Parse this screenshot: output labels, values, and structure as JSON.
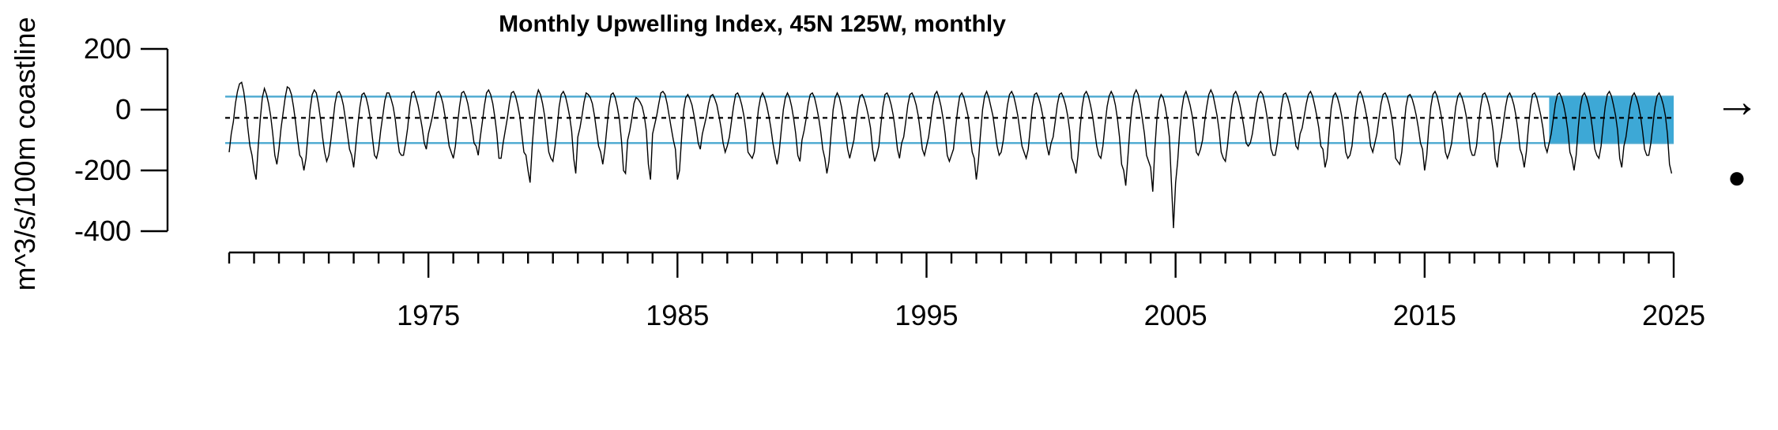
{
  "chart_data": {
    "type": "line",
    "title": "Monthly Upwelling Index, 45N 125W, monthly",
    "ylabel": "m^3/s/100m coastline",
    "xlabel": "",
    "xlim": [
      1967.0,
      2025.0
    ],
    "ylim": [
      -400,
      200
    ],
    "yticks": [
      200,
      0,
      -200,
      -400
    ],
    "ytick_labels": [
      "200",
      "0",
      "-200",
      "-400"
    ],
    "xticks_major": [
      1975,
      1985,
      1995,
      2005,
      2015,
      2025
    ],
    "xtick_labels": [
      "1975",
      "1985",
      "1995",
      "2005",
      "2015",
      "2025"
    ],
    "xticks_minor_start": 1967,
    "xticks_minor_end": 2025,
    "reference_lines": {
      "mean": -27,
      "upper": 43,
      "lower": -110
    },
    "highlight_period": {
      "start": 2020.0,
      "end": 2025.0
    },
    "colors": {
      "line": "#000000",
      "reference": "#4aa8d0",
      "highlight_fill": "#3da8d6",
      "mean_line": "#000000"
    },
    "recent_trend": "→",
    "recent_vs_mean": "●",
    "series": [
      {
        "start_year": 1967,
        "start_month": 1,
        "step_months": 1,
        "values": [
          -140,
          -80,
          -40,
          20,
          60,
          85,
          90,
          60,
          10,
          -60,
          -120,
          -150,
          -200,
          -230,
          -120,
          -30,
          40,
          70,
          50,
          20,
          -20,
          -80,
          -150,
          -180,
          -130,
          -60,
          -10,
          40,
          75,
          70,
          50,
          10,
          -40,
          -100,
          -150,
          -160,
          -200,
          -160,
          -80,
          0,
          50,
          65,
          55,
          20,
          -30,
          -90,
          -140,
          -170,
          -150,
          -100,
          -40,
          20,
          55,
          60,
          45,
          15,
          -30,
          -80,
          -130,
          -150,
          -190,
          -120,
          -50,
          10,
          50,
          55,
          40,
          10,
          -30,
          -90,
          -150,
          -160,
          -130,
          -70,
          -20,
          30,
          55,
          55,
          35,
          10,
          -30,
          -90,
          -140,
          -150,
          -150,
          -110,
          -60,
          10,
          55,
          60,
          40,
          15,
          -20,
          -60,
          -110,
          -130,
          -80,
          -50,
          -20,
          20,
          55,
          60,
          45,
          20,
          -20,
          -70,
          -120,
          -140,
          -160,
          -120,
          -50,
          10,
          55,
          60,
          45,
          20,
          -20,
          -60,
          -110,
          -120,
          -150,
          -90,
          -40,
          15,
          55,
          65,
          50,
          20,
          -25,
          -80,
          -160,
          -160,
          -110,
          -70,
          -30,
          20,
          55,
          60,
          45,
          15,
          -20,
          -80,
          -140,
          -150,
          -200,
          -240,
          -120,
          -30,
          40,
          65,
          50,
          20,
          -20,
          -80,
          -140,
          -160,
          -170,
          -120,
          -60,
          10,
          50,
          60,
          45,
          15,
          -20,
          -70,
          -160,
          -210,
          -90,
          -60,
          -20,
          25,
          55,
          50,
          40,
          20,
          -20,
          -70,
          -120,
          -140,
          -180,
          -130,
          -60,
          10,
          50,
          55,
          40,
          10,
          -30,
          -100,
          -200,
          -210,
          -100,
          -70,
          -30,
          20,
          40,
          35,
          25,
          10,
          -20,
          -70,
          -180,
          -230,
          -80,
          -50,
          -20,
          20,
          55,
          60,
          50,
          20,
          -20,
          -60,
          -100,
          -130,
          -230,
          -200,
          -90,
          0,
          40,
          50,
          35,
          15,
          -20,
          -60,
          -110,
          -130,
          -80,
          -50,
          -20,
          20,
          45,
          50,
          35,
          15,
          -20,
          -60,
          -110,
          -140,
          -120,
          -90,
          -40,
          10,
          50,
          55,
          40,
          15,
          -20,
          -70,
          -140,
          -150,
          -160,
          -140,
          -70,
          0,
          40,
          55,
          40,
          15,
          -20,
          -60,
          -110,
          -150,
          -180,
          -140,
          -70,
          0,
          40,
          55,
          40,
          10,
          -30,
          -80,
          -150,
          -170,
          -100,
          -70,
          -30,
          20,
          50,
          55,
          40,
          10,
          -25,
          -70,
          -130,
          -160,
          -210,
          -170,
          -80,
          0,
          40,
          55,
          40,
          10,
          -30,
          -80,
          -130,
          -160,
          -130,
          -100,
          -40,
          10,
          45,
          50,
          35,
          10,
          -20,
          -60,
          -130,
          -170,
          -150,
          -120,
          -50,
          10,
          50,
          55,
          40,
          15,
          -20,
          -70,
          -130,
          -160,
          -110,
          -90,
          -40,
          15,
          50,
          55,
          40,
          15,
          -20,
          -70,
          -130,
          -150,
          -120,
          -90,
          -40,
          15,
          50,
          60,
          40,
          10,
          -30,
          -80,
          -150,
          -170,
          -150,
          -130,
          -60,
          0,
          45,
          55,
          40,
          10,
          -20,
          -80,
          -140,
          -160,
          -230,
          -170,
          -80,
          0,
          45,
          60,
          40,
          10,
          -20,
          -70,
          -120,
          -150,
          -140,
          -100,
          -40,
          15,
          50,
          60,
          45,
          15,
          -20,
          -70,
          -120,
          -140,
          -160,
          -130,
          -60,
          10,
          50,
          55,
          40,
          15,
          -20,
          -70,
          -120,
          -150,
          -110,
          -90,
          -40,
          15,
          50,
          55,
          40,
          15,
          -20,
          -70,
          -160,
          -180,
          -210,
          -150,
          -60,
          10,
          50,
          60,
          45,
          15,
          -20,
          -70,
          -120,
          -150,
          -160,
          -120,
          -50,
          10,
          45,
          60,
          45,
          15,
          -30,
          -90,
          -180,
          -200,
          -250,
          -160,
          -60,
          10,
          50,
          65,
          50,
          15,
          -30,
          -80,
          -150,
          -170,
          -190,
          -270,
          -130,
          -30,
          30,
          50,
          40,
          10,
          -30,
          -90,
          -240,
          -390,
          -240,
          -170,
          -70,
          0,
          45,
          60,
          40,
          15,
          -20,
          -70,
          -140,
          -150,
          -130,
          -100,
          -40,
          10,
          50,
          65,
          50,
          15,
          -20,
          -70,
          -140,
          -160,
          -170,
          -120,
          -50,
          10,
          50,
          60,
          45,
          15,
          -20,
          -60,
          -110,
          -120,
          -110,
          -80,
          -30,
          20,
          50,
          60,
          50,
          20,
          -20,
          -70,
          -130,
          -150,
          -150,
          -110,
          -50,
          10,
          50,
          55,
          40,
          15,
          -20,
          -70,
          -120,
          -130,
          -80,
          -60,
          -20,
          20,
          50,
          60,
          45,
          15,
          -20,
          -60,
          -120,
          -130,
          -190,
          -160,
          -70,
          5,
          45,
          55,
          40,
          15,
          -20,
          -70,
          -140,
          -160,
          -150,
          -120,
          -50,
          10,
          50,
          60,
          45,
          15,
          -20,
          -60,
          -120,
          -140,
          -110,
          -80,
          -30,
          20,
          50,
          55,
          40,
          15,
          -20,
          -70,
          -160,
          -170,
          -180,
          -140,
          -60,
          10,
          45,
          50,
          35,
          10,
          -20,
          -60,
          -110,
          -130,
          -200,
          -150,
          -60,
          10,
          50,
          60,
          45,
          15,
          -20,
          -70,
          -140,
          -160,
          -140,
          -110,
          -50,
          10,
          45,
          55,
          40,
          15,
          -20,
          -70,
          -130,
          -150,
          -150,
          -120,
          -50,
          10,
          50,
          55,
          40,
          15,
          -20,
          -70,
          -160,
          -190,
          -120,
          -90,
          -40,
          10,
          45,
          55,
          40,
          15,
          -20,
          -70,
          -130,
          -150,
          -190,
          -140,
          -60,
          10,
          50,
          55,
          40,
          10,
          -20,
          -60,
          -120,
          -140,
          -110,
          -80,
          -30,
          20,
          50,
          55,
          40,
          15,
          -20,
          -70,
          -140,
          -160,
          -200,
          -150,
          -60,
          10,
          45,
          55,
          40,
          15,
          -20,
          -70,
          -130,
          -150,
          -160,
          -120,
          -50,
          10,
          50,
          60,
          45,
          15,
          -20,
          -70,
          -160,
          -190,
          -120,
          -90,
          -40,
          10,
          45,
          55,
          40,
          15,
          -20,
          -70,
          -130,
          -150,
          -150,
          -110,
          -50,
          10,
          45,
          55,
          40,
          15,
          -20,
          -80,
          -180,
          -210
        ]
      }
    ]
  }
}
